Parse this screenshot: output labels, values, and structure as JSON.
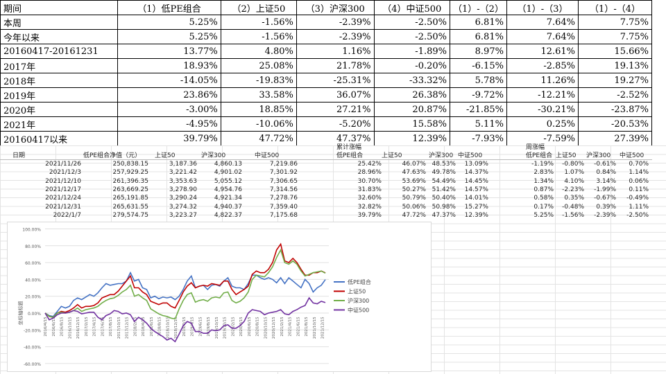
{
  "summary": {
    "headers": [
      "期间",
      "（1）低PE组合",
      "（2）上证50",
      "（3）沪深300",
      "（4）中证500",
      "（1）-（2）",
      "（1）-（3）",
      "（1）-（4）"
    ],
    "rows": [
      [
        "本周",
        "5.25%",
        "-1.56%",
        "-2.39%",
        "-2.50%",
        "6.81%",
        "7.64%",
        "7.75%"
      ],
      [
        "今年以来",
        "5.25%",
        "-1.56%",
        "-2.39%",
        "-2.50%",
        "6.81%",
        "7.64%",
        "7.75%"
      ],
      [
        "20160417-20161231",
        "13.77%",
        "4.80%",
        "1.16%",
        "-1.89%",
        "8.97%",
        "12.61%",
        "15.66%"
      ],
      [
        "2017年",
        "18.93%",
        "25.08%",
        "21.78%",
        "-0.20%",
        "-6.15%",
        "-2.85%",
        "19.13%"
      ],
      [
        "2018年",
        "-14.05%",
        "-19.83%",
        "-25.31%",
        "-33.32%",
        "5.78%",
        "11.26%",
        "19.27%"
      ],
      [
        "2019年",
        "23.86%",
        "33.58%",
        "36.07%",
        "26.38%",
        "-9.72%",
        "-12.21%",
        "-2.52%"
      ],
      [
        "2020年",
        "-3.00%",
        "18.85%",
        "27.21%",
        "20.87%",
        "-21.85%",
        "-30.21%",
        "-23.87%"
      ],
      [
        "2021年",
        "-4.95%",
        "-10.06%",
        "-5.20%",
        "15.58%",
        "5.11%",
        "0.25%",
        "-20.53%"
      ],
      [
        "20160417以来",
        "39.79%",
        "47.72%",
        "47.37%",
        "12.39%",
        "-7.93%",
        "-7.59%",
        "27.39%"
      ]
    ]
  },
  "weekly": {
    "group_cum": "累计涨幅",
    "group_week": "周涨幅",
    "headers": [
      "日期",
      "低PE组合净值（元）",
      "上证50",
      "沪深300",
      "中证500",
      "低PE组合",
      "上证50",
      "沪深300",
      "中证500",
      "低PE组合",
      "上证50",
      "沪深300",
      "中证500"
    ],
    "rows": [
      [
        "2021/11/26",
        "250,838.15",
        "3,187.36",
        "4,860.13",
        "7,219.86",
        "25.42%",
        "46.07%",
        "48.53%",
        "13.09%",
        "-1.19%",
        "-0.80%",
        "-0.61%",
        "0.70%"
      ],
      [
        "2021/12/3",
        "257,929.25",
        "3,221.42",
        "4,901.02",
        "7,301.92",
        "28.96%",
        "47.63%",
        "49.78%",
        "14.37%",
        "2.83%",
        "1.07%",
        "0.84%",
        "1.14%"
      ],
      [
        "2021/12/10",
        "261,396.35",
        "3,353.63",
        "5,055.12",
        "7,306.65",
        "30.70%",
        "53.69%",
        "54.49%",
        "14.45%",
        "1.34%",
        "4.10%",
        "3.14%",
        "0.06%"
      ],
      [
        "2021/12/17",
        "263,669.25",
        "3,278.90",
        "4,954.76",
        "7,314.56",
        "31.83%",
        "50.27%",
        "51.42%",
        "14.57%",
        "0.87%",
        "-2.23%",
        "-1.99%",
        "0.11%"
      ],
      [
        "2021/12/24",
        "265,191.85",
        "3,290.24",
        "4,921.34",
        "7,278.76",
        "32.60%",
        "50.79%",
        "50.40%",
        "14.01%",
        "0.58%",
        "0.35%",
        "-0.67%",
        "-0.49%"
      ],
      [
        "2021/12/31",
        "265,631.55",
        "3,274.32",
        "4,940.37",
        "7,359.40",
        "32.82%",
        "50.06%",
        "50.98%",
        "15.27%",
        "0.17%",
        "-0.48%",
        "0.39%",
        "1.11%"
      ],
      [
        "2022/1/7",
        "279,574.75",
        "3,223.27",
        "4,822.37",
        "7,175.68",
        "39.79%",
        "47.72%",
        "47.37%",
        "12.39%",
        "5.25%",
        "-1.56%",
        "-2.39%",
        "-2.50%"
      ]
    ]
  },
  "chart_data": {
    "type": "line",
    "ylabel": "坐标轴标题",
    "ylim": [
      -60,
      100
    ],
    "yticks": [
      "100.00%",
      "80.00%",
      "60.00%",
      "40.00%",
      "20.00%",
      "0.00%",
      "-20.00%",
      "-40.00%",
      "-60.00%"
    ],
    "xticks": [
      "2016/4/15",
      "2016/6/15",
      "2016/8/15",
      "2016/10/15",
      "2016/12/15",
      "2017/2/15",
      "2017/4/15",
      "2017/6/15",
      "2017/8/15",
      "2017/10/15",
      "2017/12/15",
      "2018/2/15",
      "2018/4/15",
      "2018/6/15",
      "2018/8/15",
      "2018/10/15",
      "2018/12/15",
      "2019/2/15",
      "2019/4/15",
      "2019/6/15",
      "2019/8/15",
      "2019/10/15",
      "2019/12/15",
      "2020/2/15",
      "2020/4/15",
      "2020/6/15",
      "2020/8/15",
      "2020/10/15",
      "2020/12/15",
      "2021/2/15",
      "2021/4/15",
      "2021/6/15",
      "2021/8/15",
      "2021/10/15",
      "2021/12/15"
    ],
    "x_note": "monthly from 2016/4 to 2022/1",
    "series": [
      {
        "name": "低PE组合",
        "color": "#4472c4",
        "values": [
          0,
          -3,
          -4,
          2,
          8,
          6,
          8,
          15,
          18,
          16,
          19,
          22,
          20,
          24,
          30,
          35,
          33,
          34,
          35,
          35,
          38,
          48,
          38,
          40,
          30,
          28,
          18,
          20,
          17,
          19,
          18,
          19,
          16,
          20,
          28,
          38,
          44,
          30,
          32,
          33,
          28,
          33,
          34,
          32,
          38,
          42,
          32,
          30,
          30,
          28,
          35,
          45,
          45,
          42,
          40,
          42,
          40,
          36,
          42,
          35,
          42,
          38,
          34,
          30,
          40,
          35,
          25,
          30,
          33,
          39.79
        ]
      },
      {
        "name": "上证50",
        "color": "#c00000",
        "values": [
          0,
          -4,
          -5,
          0,
          2,
          1,
          3,
          6,
          10,
          6,
          8,
          8,
          9,
          12,
          18,
          20,
          22,
          22,
          26,
          32,
          38,
          44,
          30,
          30,
          25,
          22,
          14,
          12,
          10,
          12,
          12,
          8,
          6,
          15,
          25,
          32,
          36,
          30,
          32,
          33,
          32,
          35,
          34,
          33,
          38,
          38,
          28,
          22,
          25,
          28,
          32,
          46,
          50,
          48,
          48,
          52,
          60,
          75,
          82,
          62,
          60,
          65,
          60,
          52,
          45,
          45,
          48,
          48,
          50,
          47.72
        ]
      },
      {
        "name": "沪深300",
        "color": "#70ad47",
        "values": [
          0,
          -4,
          -5,
          0,
          1,
          0,
          1,
          3,
          6,
          2,
          4,
          5,
          6,
          8,
          12,
          15,
          17,
          18,
          21,
          25,
          28,
          33,
          20,
          22,
          18,
          15,
          5,
          2,
          -1,
          -3,
          -4,
          -6,
          -7,
          5,
          15,
          22,
          24,
          13,
          15,
          16,
          14,
          18,
          19,
          18,
          24,
          25,
          15,
          12,
          14,
          18,
          25,
          40,
          45,
          44,
          43,
          48,
          55,
          66,
          75,
          60,
          58,
          62,
          58,
          50,
          44,
          46,
          48,
          49,
          50,
          47.37
        ]
      },
      {
        "name": "中证500",
        "color": "#7030a0",
        "values": [
          0,
          -8,
          -6,
          -2,
          0,
          0,
          1,
          3,
          2,
          -1,
          0,
          1,
          1,
          -5,
          -8,
          -3,
          -1,
          3,
          2,
          -1,
          0,
          -2,
          -10,
          -5,
          -8,
          -12,
          -18,
          -22,
          -25,
          -28,
          -32,
          -30,
          -34,
          -25,
          -15,
          -10,
          -12,
          -22,
          -22,
          -24,
          -24,
          -20,
          -21,
          -20,
          -15,
          -14,
          -18,
          -18,
          -15,
          -10,
          0,
          4,
          3,
          2,
          -2,
          0,
          1,
          2,
          4,
          -1,
          -2,
          2,
          4,
          7,
          9,
          18,
          12,
          11,
          14,
          12.39
        ]
      }
    ]
  }
}
